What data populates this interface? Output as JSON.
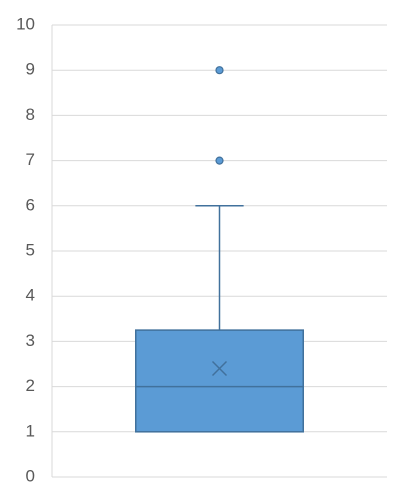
{
  "chart_data": {
    "type": "box",
    "ylim": [
      0,
      10
    ],
    "yticks": [
      0,
      1,
      2,
      3,
      4,
      5,
      6,
      7,
      8,
      9,
      10
    ],
    "grid": true,
    "color": "#5b9bd5",
    "edge_color": "#41719c",
    "boxes": [
      {
        "min": 1,
        "q1": 1,
        "median": 2,
        "q3": 3.25,
        "max": 6,
        "mean": 2.4,
        "outliers": [
          7,
          9
        ]
      }
    ]
  }
}
